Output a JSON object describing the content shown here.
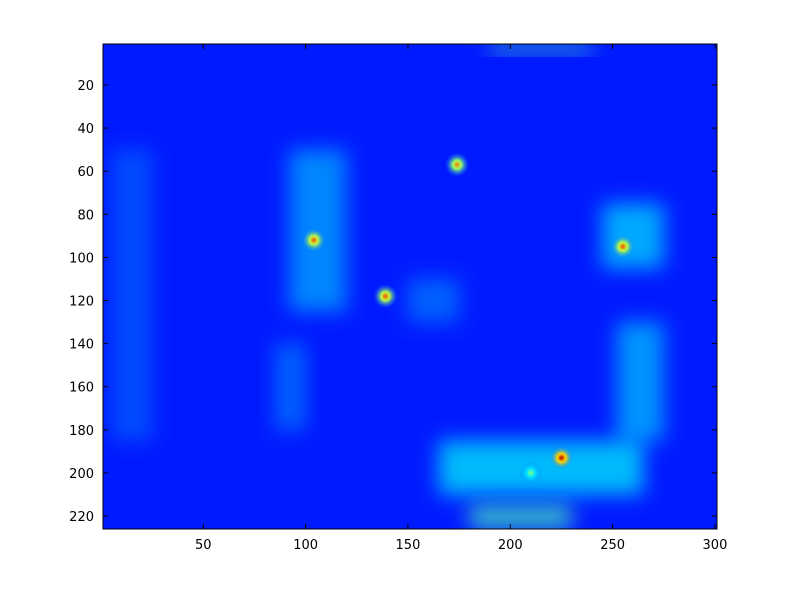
{
  "chart_data": {
    "type": "heatmap",
    "title": "",
    "xlabel": "",
    "ylabel": "",
    "xlim": [
      1,
      301
    ],
    "ylim": [
      1,
      226
    ],
    "y_reversed": true,
    "colormap": "jet",
    "grid": false,
    "legend": "none",
    "xticks": [
      50,
      100,
      150,
      200,
      250,
      300
    ],
    "yticks": [
      20,
      40,
      60,
      80,
      100,
      120,
      140,
      160,
      180,
      200,
      220
    ],
    "hotspots": [
      {
        "x": 174,
        "y": 57,
        "level": 0.75
      },
      {
        "x": 104,
        "y": 92,
        "level": 0.8
      },
      {
        "x": 255,
        "y": 95,
        "level": 0.8
      },
      {
        "x": 139,
        "y": 118,
        "level": 0.8
      },
      {
        "x": 225,
        "y": 193,
        "level": 0.95
      },
      {
        "x": 210,
        "y": 200,
        "level": 0.5
      }
    ],
    "bright_regions": [
      {
        "x0": 190,
        "x1": 240,
        "y0": 1,
        "y1": 5,
        "level": 0.45
      },
      {
        "x0": 92,
        "x1": 120,
        "y0": 50,
        "y1": 125,
        "level": 0.3
      },
      {
        "x0": 245,
        "x1": 275,
        "y0": 75,
        "y1": 105,
        "level": 0.35
      },
      {
        "x0": 252,
        "x1": 275,
        "y0": 130,
        "y1": 185,
        "level": 0.32
      },
      {
        "x0": 165,
        "x1": 265,
        "y0": 185,
        "y1": 210,
        "level": 0.38
      },
      {
        "x0": 180,
        "x1": 230,
        "y0": 215,
        "y1": 226,
        "level": 0.45
      },
      {
        "x0": 5,
        "x1": 25,
        "y0": 50,
        "y1": 185,
        "level": 0.22
      },
      {
        "x0": 85,
        "x1": 100,
        "y0": 140,
        "y1": 180,
        "level": 0.25
      },
      {
        "x0": 150,
        "x1": 175,
        "y0": 110,
        "y1": 130,
        "level": 0.25
      }
    ],
    "base_level": 0.15
  }
}
